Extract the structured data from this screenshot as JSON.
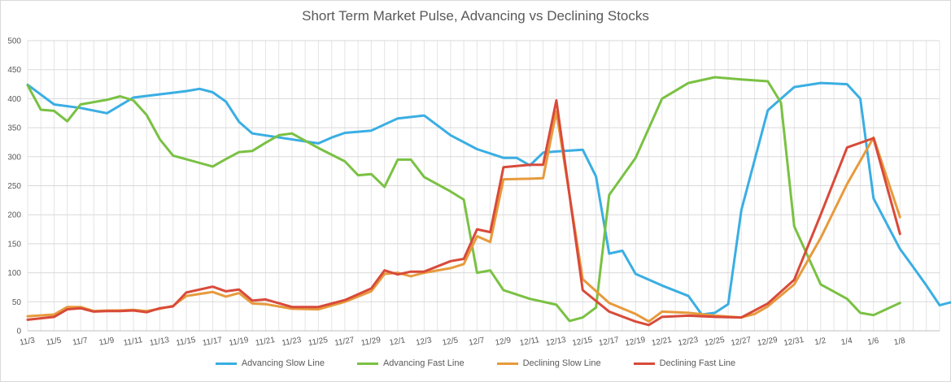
{
  "chart_data": {
    "type": "line",
    "title": "Short Term Market Pulse, Advancing vs Declining Stocks",
    "xlabel": "",
    "ylabel": "",
    "ylim": [
      0,
      500
    ],
    "yticks": [
      0,
      50,
      100,
      150,
      200,
      250,
      300,
      350,
      400,
      450,
      500
    ],
    "grid": true,
    "legend_position": "bottom",
    "x_tick_labels": [
      "11/3",
      "11/5",
      "11/7",
      "11/9",
      "11/11",
      "11/13",
      "11/15",
      "11/17",
      "11/19",
      "11/21",
      "11/23",
      "11/25",
      "11/27",
      "11/29",
      "12/1",
      "12/3",
      "12/5",
      "12/7",
      "12/9",
      "12/11",
      "12/13",
      "12/15",
      "12/17",
      "12/19",
      "12/21",
      "12/23",
      "12/25",
      "12/27",
      "12/29",
      "12/31",
      "1/2",
      "1/4",
      "1/6",
      "1/8"
    ],
    "series": [
      {
        "name": "Advancing Slow Line",
        "color": "#3aaee3",
        "points": [
          [
            0,
            424
          ],
          [
            1,
            390
          ],
          [
            2,
            384
          ],
          [
            3,
            375
          ],
          [
            4,
            402
          ],
          [
            6,
            413
          ],
          [
            6.5,
            417
          ],
          [
            7,
            411
          ],
          [
            7.5,
            395
          ],
          [
            8,
            360
          ],
          [
            8.5,
            340
          ],
          [
            11,
            323
          ],
          [
            11.5,
            333
          ],
          [
            12,
            341
          ],
          [
            13,
            345
          ],
          [
            14,
            366
          ],
          [
            15,
            371
          ],
          [
            16,
            337
          ],
          [
            17,
            313
          ],
          [
            18,
            298
          ],
          [
            18.5,
            298
          ],
          [
            19,
            285
          ],
          [
            19.5,
            307
          ],
          [
            20,
            309
          ],
          [
            21,
            312
          ],
          [
            21.5,
            266
          ],
          [
            22,
            133
          ],
          [
            22.5,
            138
          ],
          [
            23,
            98
          ],
          [
            24,
            78
          ],
          [
            25,
            60
          ],
          [
            25.5,
            28
          ],
          [
            26,
            31
          ],
          [
            26.5,
            46
          ],
          [
            27,
            208
          ],
          [
            28,
            380
          ],
          [
            29,
            420
          ],
          [
            30,
            427
          ],
          [
            31,
            425
          ],
          [
            31.5,
            400
          ],
          [
            32,
            228
          ],
          [
            33,
            141
          ],
          [
            33.5,
            110
          ],
          [
            34,
            78
          ],
          [
            34.5,
            44
          ],
          [
            35,
            50
          ],
          [
            35.5,
            63
          ]
        ]
      },
      {
        "name": "Advancing Fast Line",
        "color": "#7ac143",
        "points": [
          [
            0,
            423
          ],
          [
            0.5,
            381
          ],
          [
            1,
            379
          ],
          [
            1.5,
            361
          ],
          [
            2,
            390
          ],
          [
            3,
            398
          ],
          [
            3.5,
            404
          ],
          [
            4,
            397
          ],
          [
            4.5,
            372
          ],
          [
            5,
            330
          ],
          [
            5.5,
            302
          ],
          [
            7,
            283
          ],
          [
            7.5,
            296
          ],
          [
            8,
            308
          ],
          [
            8.5,
            310
          ],
          [
            9,
            324
          ],
          [
            9.5,
            337
          ],
          [
            10,
            340
          ],
          [
            11,
            315
          ],
          [
            12,
            292
          ],
          [
            12.5,
            268
          ],
          [
            13,
            270
          ],
          [
            13.5,
            248
          ],
          [
            14,
            295
          ],
          [
            14.5,
            295
          ],
          [
            15,
            265
          ],
          [
            16,
            240
          ],
          [
            16.5,
            226
          ],
          [
            17,
            100
          ],
          [
            17.5,
            104
          ],
          [
            18,
            70
          ],
          [
            19,
            55
          ],
          [
            20,
            45
          ],
          [
            20.5,
            17
          ],
          [
            21,
            23
          ],
          [
            21.5,
            40
          ],
          [
            22,
            234
          ],
          [
            23,
            298
          ],
          [
            24,
            400
          ],
          [
            25,
            427
          ],
          [
            26,
            437
          ],
          [
            27,
            433
          ],
          [
            28,
            430
          ],
          [
            28.5,
            393
          ],
          [
            29,
            180
          ],
          [
            30,
            80
          ],
          [
            31,
            55
          ],
          [
            31.5,
            31
          ],
          [
            32,
            27
          ],
          [
            33,
            48
          ]
        ]
      },
      {
        "name": "Declining Slow Line",
        "color": "#e79a3c",
        "points": [
          [
            0,
            25
          ],
          [
            1,
            28
          ],
          [
            1.5,
            41
          ],
          [
            2,
            41
          ],
          [
            2.5,
            34
          ],
          [
            3,
            35
          ],
          [
            3.5,
            35
          ],
          [
            4,
            36
          ],
          [
            4.5,
            34
          ],
          [
            5,
            38
          ],
          [
            5.5,
            43
          ],
          [
            6,
            60
          ],
          [
            7,
            67
          ],
          [
            7.5,
            59
          ],
          [
            8,
            65
          ],
          [
            8.5,
            47
          ],
          [
            9,
            46
          ],
          [
            10,
            38
          ],
          [
            11,
            37
          ],
          [
            12,
            50
          ],
          [
            13,
            68
          ],
          [
            13.5,
            98
          ],
          [
            14,
            100
          ],
          [
            14.5,
            94
          ],
          [
            15,
            100
          ],
          [
            16,
            108
          ],
          [
            16.5,
            115
          ],
          [
            17,
            163
          ],
          [
            17.5,
            153
          ],
          [
            18,
            261
          ],
          [
            19,
            262
          ],
          [
            19.5,
            263
          ],
          [
            20,
            378
          ],
          [
            21,
            89
          ],
          [
            22,
            48
          ],
          [
            23,
            29
          ],
          [
            23.5,
            16
          ],
          [
            24,
            33
          ],
          [
            25,
            31
          ],
          [
            26,
            26
          ],
          [
            27,
            23
          ],
          [
            27.5,
            29
          ],
          [
            28,
            42
          ],
          [
            29,
            80
          ],
          [
            30,
            160
          ],
          [
            31,
            253
          ],
          [
            32,
            333
          ],
          [
            33,
            196
          ]
        ]
      },
      {
        "name": "Declining Fast Line",
        "color": "#d84a3a",
        "points": [
          [
            0,
            19
          ],
          [
            1,
            24
          ],
          [
            1.5,
            37
          ],
          [
            2,
            39
          ],
          [
            2.5,
            33
          ],
          [
            3,
            34
          ],
          [
            3.5,
            34
          ],
          [
            4,
            35
          ],
          [
            4.5,
            32
          ],
          [
            5,
            39
          ],
          [
            5.5,
            42
          ],
          [
            6,
            66
          ],
          [
            7,
            76
          ],
          [
            7.5,
            68
          ],
          [
            8,
            71
          ],
          [
            8.5,
            52
          ],
          [
            9,
            54
          ],
          [
            10,
            41
          ],
          [
            11,
            41
          ],
          [
            12,
            53
          ],
          [
            13,
            73
          ],
          [
            13.5,
            104
          ],
          [
            14,
            97
          ],
          [
            14.5,
            102
          ],
          [
            15,
            102
          ],
          [
            16,
            120
          ],
          [
            16.5,
            124
          ],
          [
            17,
            175
          ],
          [
            17.5,
            170
          ],
          [
            18,
            282
          ],
          [
            19,
            286
          ],
          [
            19.5,
            286
          ],
          [
            20,
            397
          ],
          [
            21,
            70
          ],
          [
            22,
            33
          ],
          [
            23,
            16
          ],
          [
            23.5,
            10
          ],
          [
            24,
            24
          ],
          [
            25,
            26
          ],
          [
            26,
            24
          ],
          [
            27,
            23
          ],
          [
            27.5,
            35
          ],
          [
            28,
            47
          ],
          [
            29,
            88
          ],
          [
            30,
            200
          ],
          [
            31,
            316
          ],
          [
            32,
            332
          ],
          [
            33,
            167
          ]
        ]
      }
    ]
  }
}
